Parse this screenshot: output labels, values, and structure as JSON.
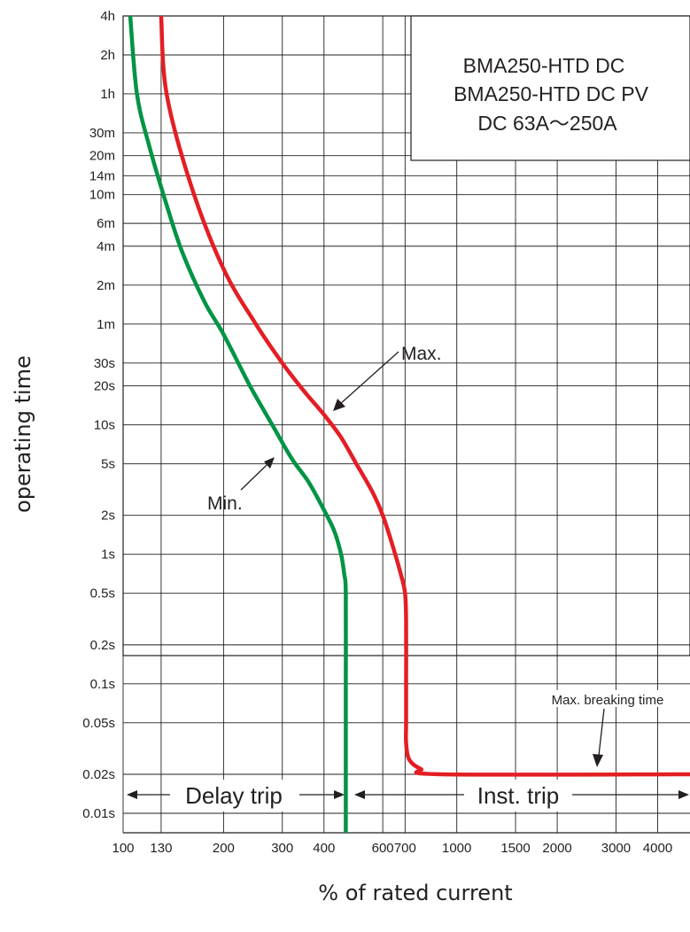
{
  "chart_data": {
    "type": "line",
    "title_lines": [
      "BMA250-HTD DC",
      "BMA250-HTD DC PV",
      "DC 63A～250A"
    ],
    "xlabel": "% of rated current",
    "ylabel": "operating time",
    "x_scale": "log",
    "y_scale": "log",
    "xlim": [
      100,
      5000
    ],
    "ylim": [
      "0.01s",
      "4h"
    ],
    "grid": true,
    "x_ticks": [
      {
        "value": 100,
        "label": "100"
      },
      {
        "value": 130,
        "label": "130"
      },
      {
        "value": 200,
        "label": "200"
      },
      {
        "value": 300,
        "label": "300"
      },
      {
        "value": 400,
        "label": "400"
      },
      {
        "value": 600,
        "label": "600"
      },
      {
        "value": 700,
        "label": "700"
      },
      {
        "value": 1000,
        "label": "1000"
      },
      {
        "value": 1500,
        "label": "1500"
      },
      {
        "value": 2000,
        "label": "2000"
      },
      {
        "value": 3000,
        "label": "3000"
      },
      {
        "value": 4000,
        "label": "4000"
      }
    ],
    "y_ticks": [
      {
        "value": 14400,
        "label": "4h"
      },
      {
        "value": 7200,
        "label": "2h"
      },
      {
        "value": 3600,
        "label": "1h"
      },
      {
        "value": 1800,
        "label": "30m"
      },
      {
        "value": 1200,
        "label": "20m"
      },
      {
        "value": 840,
        "label": "14m"
      },
      {
        "value": 600,
        "label": "10m"
      },
      {
        "value": 360,
        "label": "6m"
      },
      {
        "value": 240,
        "label": "4m"
      },
      {
        "value": 120,
        "label": "2m"
      },
      {
        "value": 60,
        "label": "1m"
      },
      {
        "value": 30,
        "label": "30s"
      },
      {
        "value": 20,
        "label": "20s"
      },
      {
        "value": 10,
        "label": "10s"
      },
      {
        "value": 5,
        "label": "5s"
      },
      {
        "value": 2,
        "label": "2s"
      },
      {
        "value": 1,
        "label": "1s"
      },
      {
        "value": 0.5,
        "label": "0.5s"
      },
      {
        "value": 0.2,
        "label": "0.2s"
      },
      {
        "value": 0.1,
        "label": "0.1s"
      },
      {
        "value": 0.05,
        "label": "0.05s"
      },
      {
        "value": 0.02,
        "label": "0.02s"
      },
      {
        "value": 0.01,
        "label": "0.01s"
      }
    ],
    "series": [
      {
        "name": "Max.",
        "color": "#e31e24",
        "points": [
          [
            130,
            14400
          ],
          [
            135,
            3600
          ],
          [
            160,
            700
          ],
          [
            200,
            160
          ],
          [
            250,
            60
          ],
          [
            300,
            30
          ],
          [
            350,
            18
          ],
          [
            400,
            12
          ],
          [
            450,
            8
          ],
          [
            500,
            5
          ],
          [
            560,
            3
          ],
          [
            600,
            2
          ],
          [
            640,
            1.2
          ],
          [
            680,
            0.7
          ],
          [
            700,
            0.5
          ],
          [
            705,
            0.3
          ],
          [
            705,
            0.1
          ],
          [
            705,
            0.05
          ],
          [
            705,
            0.035
          ],
          [
            720,
            0.026
          ],
          [
            780,
            0.022
          ],
          [
            900,
            0.02
          ],
          [
            5000,
            0.02
          ]
        ]
      },
      {
        "name": "Min.",
        "color": "#009444",
        "points": [
          [
            105,
            14400
          ],
          [
            110,
            3600
          ],
          [
            120,
            1400
          ],
          [
            135,
            500
          ],
          [
            150,
            220
          ],
          [
            175,
            90
          ],
          [
            200,
            50
          ],
          [
            240,
            20
          ],
          [
            280,
            10
          ],
          [
            320,
            5.5
          ],
          [
            360,
            3.6
          ],
          [
            400,
            2.2
          ],
          [
            430,
            1.5
          ],
          [
            450,
            1.0
          ],
          [
            460,
            0.7
          ],
          [
            465,
            0.5
          ],
          [
            465,
            0.1
          ],
          [
            465,
            0.02
          ],
          [
            465,
            0.007
          ]
        ]
      }
    ],
    "annotations": {
      "max_label": "Max.",
      "min_label": "Min.",
      "breaking_label": "Max. breaking time",
      "delay_label": "Delay trip",
      "inst_label": "Inst. trip"
    }
  }
}
